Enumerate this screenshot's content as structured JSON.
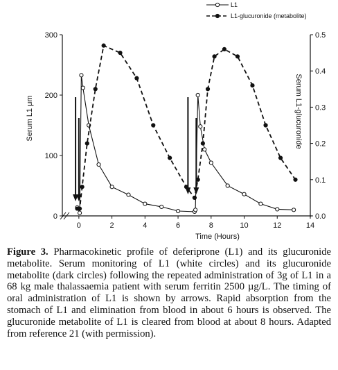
{
  "chart_data": {
    "type": "line",
    "xlabel": "Time (Hours)",
    "ylabel_left": "Serum L1 μm",
    "ylabel_right": "Serum L1-glucuronide",
    "x_ticks": [
      "0",
      "2",
      "4",
      "6",
      "8",
      "10",
      "12",
      "14"
    ],
    "y_left_ticks": [
      "0",
      "100",
      "200",
      "300"
    ],
    "y_right_ticks": [
      "0.0",
      "0.1",
      "0.2",
      "0.3",
      "0.4",
      "0.5"
    ],
    "xlim": [
      -1,
      14
    ],
    "ylim_left": [
      0,
      300
    ],
    "ylim_right": [
      0,
      0.5
    ],
    "legend": {
      "placement": "top-right",
      "entries": [
        "L1",
        "L1-glucuronide (metabolite)"
      ]
    },
    "series": [
      {
        "name": "L1",
        "style": "solid, open circles",
        "axis": "left",
        "x": [
          -0.1,
          0.05,
          0.15,
          0.25,
          0.6,
          1.2,
          2.0,
          3.0,
          4.0,
          5.0,
          6.0,
          7.0,
          7.05,
          7.2,
          7.35,
          7.6,
          8.0,
          9.0,
          10.0,
          11.0,
          12.0,
          13.0
        ],
        "values": [
          14,
          5,
          233,
          212,
          150,
          85,
          48,
          35,
          20,
          15,
          8,
          7,
          10,
          200,
          148,
          110,
          88,
          50,
          36,
          20,
          11,
          10
        ]
      },
      {
        "name": "L1-glucuronide (metabolite)",
        "style": "dashed, filled circles",
        "axis": "right",
        "x": [
          -0.1,
          0.05,
          0.2,
          0.5,
          1.0,
          1.5,
          2.5,
          3.5,
          4.5,
          5.5,
          6.5,
          7.0,
          7.2,
          7.5,
          7.8,
          8.2,
          8.8,
          9.6,
          10.5,
          11.3,
          12.2,
          13.1
        ],
        "values": [
          0.02,
          0.02,
          0.08,
          0.2,
          0.35,
          0.47,
          0.45,
          0.38,
          0.25,
          0.16,
          0.08,
          0.05,
          0.1,
          0.2,
          0.35,
          0.44,
          0.46,
          0.44,
          0.36,
          0.25,
          0.16,
          0.1
        ]
      }
    ],
    "arrows_at_x": [
      -0.2,
      0.0,
      6.6,
      7.1
    ]
  },
  "caption": {
    "label": "Figure 3.",
    "text": " Pharmacokinetic profile of deferiprone (L1) and its glucuronide metabolite. Serum monitoring of L1 (white circles) and its glucuronide metabolite (dark circles) following the repeated administration of 3g of L1 in a 68 kg male thalassaemia patient with serum ferritin 2500 µg/L. The timing of oral administration of L1 is shown by arrows. Rapid absorption from the stomach of L1 and elimination from blood in about 6 hours is observed. The glucuronide metabolite of L1 is cleared from blood at about 8 hours. Adapted from reference 21 (with permission)."
  }
}
